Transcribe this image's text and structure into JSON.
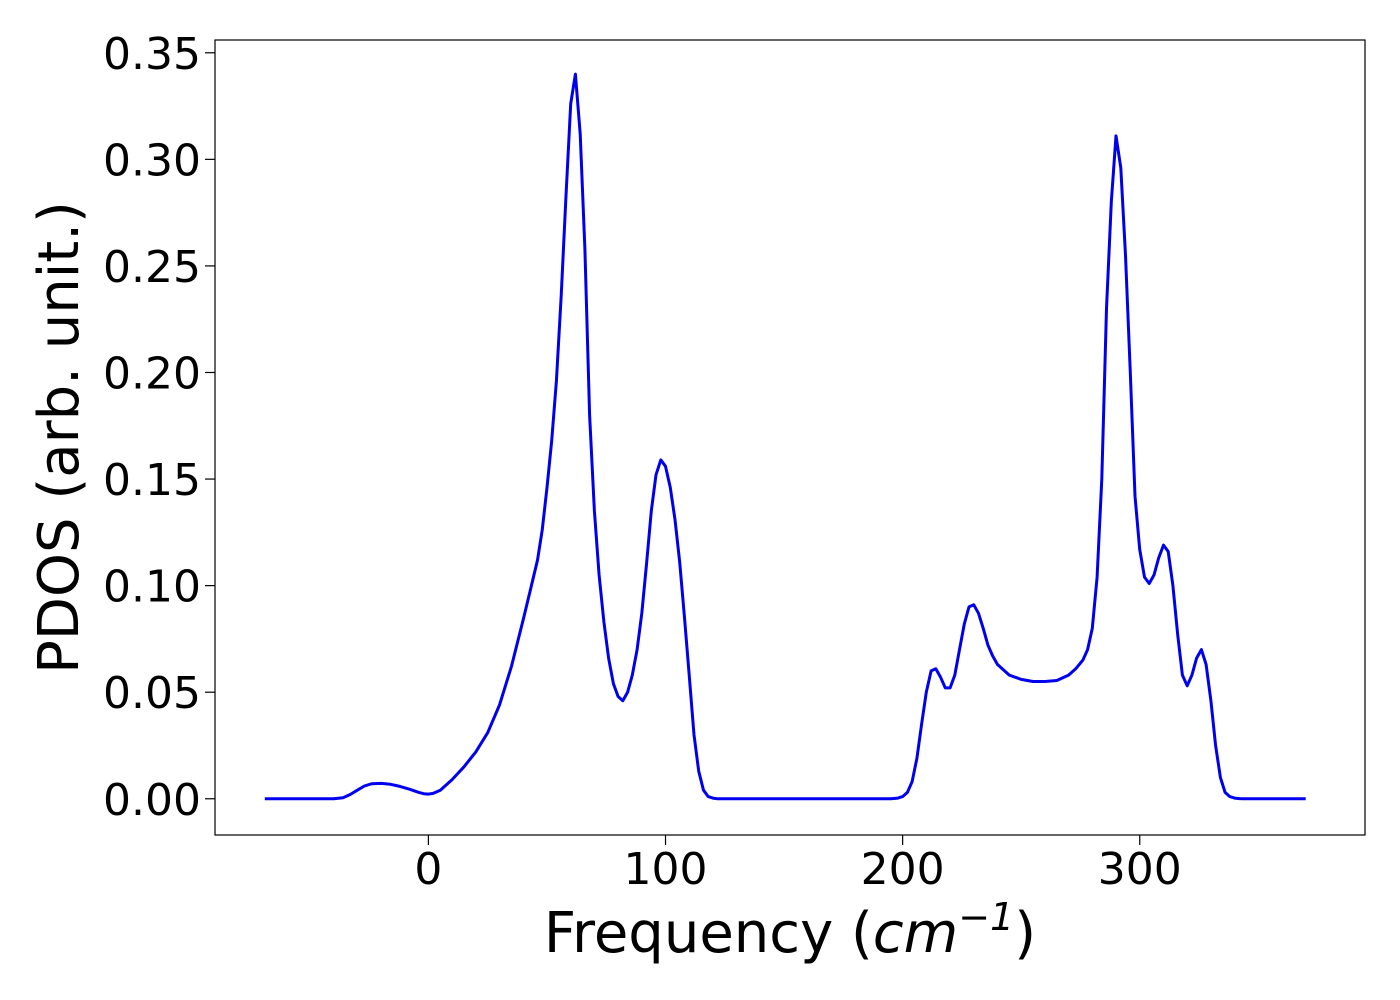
{
  "chart_data": {
    "type": "line",
    "xlabel_prefix": "Frequency (",
    "xlabel_var": "cm",
    "xlabel_exp": "−1",
    "xlabel_suffix": ")",
    "ylabel": "PDOS (arb. unit.)",
    "xlim": [
      -90,
      395
    ],
    "ylim": [
      -0.017,
      0.356
    ],
    "xticks": [
      0,
      100,
      200,
      300
    ],
    "yticks": [
      0.0,
      0.05,
      0.1,
      0.15,
      0.2,
      0.25,
      0.3,
      0.35
    ],
    "ytick_labels": [
      "0.00",
      "0.05",
      "0.10",
      "0.15",
      "0.20",
      "0.25",
      "0.30",
      "0.35"
    ],
    "grid": false,
    "series": [
      {
        "color": "#0000ee",
        "x": [
          -69,
          -60,
          -50,
          -40,
          -36,
          -33,
          -30,
          -27,
          -24,
          -20,
          -16,
          -12,
          -8,
          -4,
          -2,
          0,
          2,
          5,
          10,
          15,
          20,
          25,
          30,
          35,
          40,
          43,
          46,
          48,
          50,
          52,
          54,
          56,
          58,
          60,
          62,
          64,
          66,
          68,
          70,
          72,
          74,
          76,
          78,
          80,
          82,
          84,
          86,
          88,
          90,
          92,
          94,
          96,
          98,
          100,
          102,
          104,
          106,
          108,
          110,
          112,
          114,
          116,
          118,
          120,
          122,
          125,
          130,
          150,
          180,
          195,
          198,
          200,
          202,
          204,
          206,
          208,
          210,
          212,
          214,
          216,
          218,
          220,
          222,
          224,
          226,
          228,
          230,
          232,
          234,
          236,
          238,
          240,
          245,
          250,
          255,
          260,
          265,
          270,
          273,
          276,
          278,
          280,
          282,
          284,
          286,
          288,
          290,
          292,
          294,
          296,
          298,
          300,
          302,
          304,
          306,
          308,
          310,
          312,
          314,
          316,
          318,
          320,
          322,
          324,
          326,
          328,
          330,
          332,
          334,
          336,
          338,
          340,
          342,
          344,
          346,
          350,
          360,
          370
        ],
        "y": [
          0.0,
          0.0,
          0.0,
          0.0,
          0.0005,
          0.002,
          0.004,
          0.006,
          0.007,
          0.0072,
          0.0068,
          0.0058,
          0.0045,
          0.003,
          0.0024,
          0.0022,
          0.0025,
          0.004,
          0.009,
          0.015,
          0.022,
          0.031,
          0.044,
          0.062,
          0.084,
          0.098,
          0.112,
          0.126,
          0.146,
          0.168,
          0.196,
          0.236,
          0.282,
          0.326,
          0.34,
          0.312,
          0.258,
          0.18,
          0.135,
          0.105,
          0.083,
          0.066,
          0.054,
          0.048,
          0.046,
          0.05,
          0.058,
          0.07,
          0.087,
          0.11,
          0.135,
          0.152,
          0.159,
          0.156,
          0.146,
          0.131,
          0.111,
          0.085,
          0.058,
          0.03,
          0.013,
          0.004,
          0.001,
          0.0003,
          0.0,
          0.0,
          0.0,
          0.0,
          0.0,
          0.0,
          0.0003,
          0.001,
          0.003,
          0.008,
          0.019,
          0.035,
          0.05,
          0.06,
          0.061,
          0.057,
          0.052,
          0.052,
          0.058,
          0.07,
          0.082,
          0.09,
          0.091,
          0.087,
          0.08,
          0.072,
          0.067,
          0.063,
          0.058,
          0.056,
          0.055,
          0.055,
          0.0555,
          0.058,
          0.061,
          0.065,
          0.07,
          0.08,
          0.104,
          0.15,
          0.23,
          0.28,
          0.311,
          0.296,
          0.255,
          0.2,
          0.142,
          0.117,
          0.104,
          0.101,
          0.105,
          0.113,
          0.119,
          0.116,
          0.1,
          0.077,
          0.058,
          0.053,
          0.058,
          0.066,
          0.07,
          0.063,
          0.046,
          0.025,
          0.01,
          0.003,
          0.001,
          0.0003,
          0.0001,
          0.0,
          0.0,
          0.0,
          0.0,
          0.0
        ]
      }
    ]
  }
}
